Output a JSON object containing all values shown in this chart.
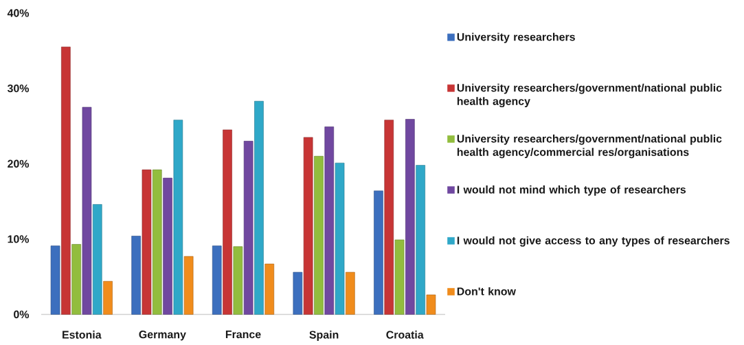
{
  "chart_data": {
    "type": "bar",
    "categories": [
      "Estonia",
      "Germany",
      "France",
      "Spain",
      "Croatia"
    ],
    "series": [
      {
        "name": "University researchers",
        "color": "#3c6fbe",
        "values": [
          9.1,
          10.4,
          9.1,
          5.6,
          16.4
        ]
      },
      {
        "name": "University researchers/government/national public health agency",
        "color": "#c73535",
        "values": [
          35.5,
          19.2,
          24.5,
          23.5,
          25.8
        ]
      },
      {
        "name": "University researchers/government/national public health agency/commercial res/organisations",
        "color": "#92bd3e",
        "values": [
          9.3,
          19.2,
          9.0,
          21.0,
          9.9
        ]
      },
      {
        "name": "I would not mind which type of researchers",
        "color": "#7048a0",
        "values": [
          27.5,
          18.1,
          23.0,
          24.9,
          25.9
        ]
      },
      {
        "name": "I would not give access to any types of researchers",
        "color": "#2fa8c8",
        "values": [
          14.6,
          25.8,
          28.3,
          20.1,
          19.8
        ]
      },
      {
        "name": "Don't know",
        "color": "#f08c1c",
        "values": [
          4.4,
          7.7,
          6.7,
          5.6,
          2.6
        ]
      }
    ],
    "ylim": [
      0,
      40
    ],
    "yticks": [
      {
        "value": 0,
        "label": "0%"
      },
      {
        "value": 10,
        "label": "10%"
      },
      {
        "value": 20,
        "label": "20%"
      },
      {
        "value": 30,
        "label": "30%"
      },
      {
        "value": 40,
        "label": "40%"
      }
    ],
    "legend": "right"
  }
}
